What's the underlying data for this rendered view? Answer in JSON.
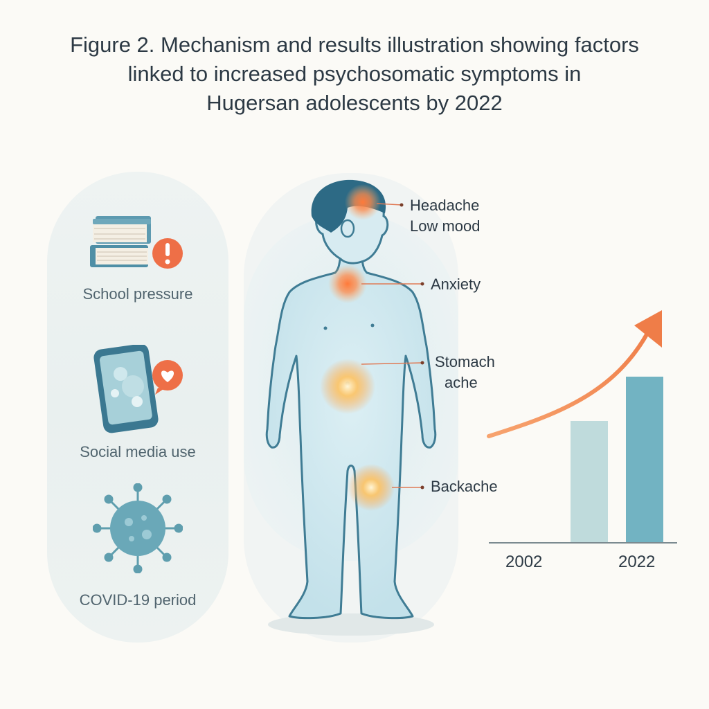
{
  "title": {
    "line1": "Figure 2. Mechanism and results illustration showing factors",
    "line2": "linked to increased psychosomatic symptoms in",
    "line3": "Hugersan adolescents by 2022"
  },
  "factors": [
    {
      "label": "School pressure",
      "icon": "books-alert-icon"
    },
    {
      "label": "Social media use",
      "icon": "phone-heart-icon"
    },
    {
      "label": "COVID-19 period",
      "icon": "virus-icon"
    }
  ],
  "symptoms": [
    {
      "line1": "Headache",
      "line2": "Low mood"
    },
    {
      "line1": "Anxiety"
    },
    {
      "line1": "Stomach",
      "line2": "ache"
    },
    {
      "line1": "Backache"
    }
  ],
  "colors": {
    "accent": "#f0784a",
    "figure_stroke": "#3f7c94",
    "bar_light": "#bfdbdc",
    "bar_dark": "#72b3c2",
    "hair": "#2d6a85"
  },
  "chart_data": {
    "type": "bar",
    "categories": [
      "2002",
      "2022"
    ],
    "values": [
      0.55,
      0.75
    ],
    "trend": "increasing",
    "title": "",
    "xlabel": "",
    "ylabel": ""
  }
}
